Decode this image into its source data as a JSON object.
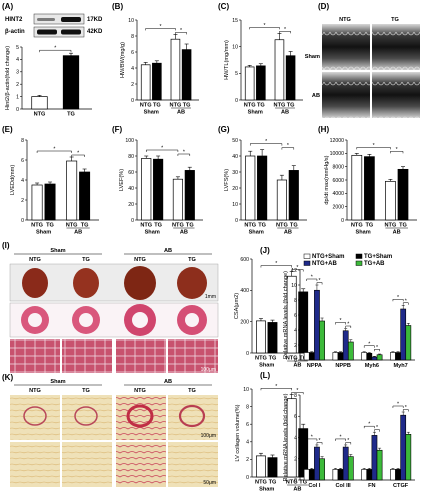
{
  "panel_labels": [
    "(A)",
    "(B)",
    "(C)",
    "(D)",
    "(E)",
    "(F)",
    "(G)",
    "(H)",
    "(I)",
    "(J)",
    "(K)",
    "(L)"
  ],
  "colors": {
    "white": "#ffffff",
    "black": "#000000",
    "navy": "#1f2a8a",
    "green": "#3cba3a",
    "gray": "#9a9a9a"
  },
  "blot": {
    "rows": [
      {
        "label": "HINT2",
        "kd": "17KD"
      },
      {
        "label": "β-actin",
        "kd": "42KD"
      }
    ],
    "lanes": [
      "NTG",
      "TG"
    ]
  },
  "group_labels": {
    "sham": "Sham",
    "ab": "AB",
    "ntg": "NTG",
    "tg": "TG"
  },
  "echo": {
    "cols": [
      "NTG",
      "TG"
    ],
    "rows": [
      "Sham",
      "AB"
    ]
  },
  "histo_I": {
    "headers": [
      "Sham",
      "AB"
    ],
    "subheaders": [
      "NTG",
      "TG",
      "NTG",
      "TG"
    ]
  },
  "histo_K": {
    "headers": [
      "Sham",
      "AB"
    ],
    "subheaders": [
      "NTG",
      "TG",
      "NTG",
      "TG"
    ]
  },
  "scale_labels": {
    "i_row1": "1mm",
    "i_row3": "100μm",
    "k_row1": "100μm",
    "k_row2": "50μm"
  },
  "chart_data": [
    {
      "id": "A",
      "type": "bar",
      "ylabel": "Hint2/β-actin(fold change)",
      "ylim": [
        0,
        5
      ],
      "yticks": [
        0,
        1,
        2,
        3,
        4,
        5
      ],
      "categories": [
        "NTG",
        "TG"
      ],
      "values": [
        1.0,
        4.3
      ],
      "errors": [
        0.1,
        0.2
      ],
      "fills": [
        "white",
        "black"
      ]
    },
    {
      "id": "B",
      "type": "bar",
      "ylabel": "HW/BW(mg/g)",
      "ylim": [
        0,
        10
      ],
      "yticks": [
        0,
        2,
        4,
        6,
        8,
        10
      ],
      "categories": [
        "NTG",
        "TG",
        "NTG",
        "TG"
      ],
      "values": [
        4.4,
        4.6,
        7.6,
        6.3
      ],
      "errors": [
        0.3,
        0.3,
        0.6,
        0.7
      ],
      "fills": [
        "white",
        "black",
        "white",
        "black"
      ]
    },
    {
      "id": "C",
      "type": "bar",
      "ylabel": "HW/TL(mg/mm)",
      "ylim": [
        0,
        15
      ],
      "yticks": [
        0,
        5,
        10,
        15
      ],
      "categories": [
        "NTG",
        "TG",
        "NTG",
        "TG"
      ],
      "values": [
        6.2,
        6.4,
        11.3,
        8.3
      ],
      "errors": [
        0.3,
        0.4,
        1.2,
        0.8
      ],
      "fills": [
        "white",
        "black",
        "white",
        "black"
      ]
    },
    {
      "id": "E",
      "type": "bar",
      "ylabel": "LVEDd(mm)",
      "ylim": [
        0,
        8
      ],
      "yticks": [
        0,
        2,
        4,
        6,
        8
      ],
      "categories": [
        "NTG",
        "TG",
        "NTG",
        "TG"
      ],
      "values": [
        3.5,
        3.6,
        5.9,
        4.8
      ],
      "errors": [
        0.2,
        0.2,
        0.4,
        0.3
      ],
      "fills": [
        "white",
        "black",
        "white",
        "black"
      ]
    },
    {
      "id": "F",
      "type": "bar",
      "ylabel": "LVEF(%)",
      "ylim": [
        0,
        100
      ],
      "yticks": [
        0,
        20,
        40,
        60,
        80,
        100
      ],
      "categories": [
        "NTG",
        "TG",
        "NTG",
        "TG"
      ],
      "values": [
        77,
        76,
        51,
        62
      ],
      "errors": [
        3,
        4,
        3,
        4
      ],
      "fills": [
        "white",
        "black",
        "white",
        "black"
      ]
    },
    {
      "id": "G",
      "type": "bar",
      "ylabel": "LVFS(%)",
      "ylim": [
        0,
        50
      ],
      "yticks": [
        0,
        10,
        20,
        30,
        40,
        50
      ],
      "categories": [
        "NTG",
        "TG",
        "NTG",
        "TG"
      ],
      "values": [
        40,
        40,
        25,
        31
      ],
      "errors": [
        3,
        4,
        3,
        3
      ],
      "fills": [
        "white",
        "black",
        "white",
        "black"
      ]
    },
    {
      "id": "H",
      "type": "bar",
      "ylabel": "dp/dt max(mmHg/s)",
      "ylim": [
        0,
        12000
      ],
      "yticks": [
        0,
        2000,
        4000,
        6000,
        8000,
        10000,
        12000
      ],
      "categories": [
        "NTG",
        "TG",
        "NTG",
        "TG"
      ],
      "values": [
        9700,
        9500,
        5800,
        7600
      ],
      "errors": [
        300,
        350,
        300,
        400
      ],
      "fills": [
        "white",
        "black",
        "white",
        "black"
      ]
    },
    {
      "id": "I",
      "type": "bar",
      "ylabel": "CSA(μm2)",
      "ylim": [
        0,
        600
      ],
      "yticks": [
        0,
        200,
        400,
        600
      ],
      "categories": [
        "NTG",
        "TG",
        "NTG",
        "TG"
      ],
      "values": [
        205,
        195,
        490,
        390
      ],
      "errors": [
        15,
        15,
        30,
        20
      ],
      "fills": [
        "white",
        "black",
        "white",
        "black"
      ]
    },
    {
      "id": "K",
      "type": "bar",
      "ylabel": "LV collagen volume(%)",
      "ylim": [
        0,
        10
      ],
      "yticks": [
        0,
        2,
        4,
        6,
        8,
        10
      ],
      "categories": [
        "NTG",
        "TG",
        "NTG",
        "TG"
      ],
      "values": [
        2.4,
        2.2,
        8.9,
        5.5
      ],
      "errors": [
        0.3,
        0.3,
        0.5,
        0.5
      ],
      "fills": [
        "white",
        "black",
        "white",
        "black"
      ]
    },
    {
      "id": "J",
      "type": "bar",
      "ylabel": "Relative mRNA levels (fold change)",
      "ylim": [
        0,
        12
      ],
      "yticks": [
        0,
        2,
        4,
        6,
        8,
        10,
        12
      ],
      "categories": [
        "NPPA",
        "NPPB",
        "Myh6",
        "Myh7"
      ],
      "series": [
        {
          "name": "NTG+Sham",
          "values": [
            1.0,
            1.0,
            1.0,
            1.0
          ],
          "errors": [
            0.1,
            0.1,
            0.1,
            0.1
          ],
          "fill": "white"
        },
        {
          "name": "TG+Sham",
          "values": [
            1.0,
            1.0,
            0.9,
            1.0
          ],
          "errors": [
            0.1,
            0.1,
            0.1,
            0.1
          ],
          "fill": "black"
        },
        {
          "name": "NTG+AB",
          "values": [
            9.3,
            3.9,
            0.4,
            6.8
          ],
          "errors": [
            0.7,
            0.3,
            0.1,
            0.5
          ],
          "fill": "navy"
        },
        {
          "name": "TG+AB",
          "values": [
            5.2,
            2.4,
            0.7,
            4.6
          ],
          "errors": [
            0.4,
            0.3,
            0.1,
            0.3
          ],
          "fill": "green"
        }
      ]
    },
    {
      "id": "L",
      "type": "bar",
      "ylabel": "Relative mRNA levels (fold change)",
      "ylim": [
        0,
        8
      ],
      "yticks": [
        0,
        2,
        4,
        6,
        8
      ],
      "categories": [
        "Col I",
        "Col III",
        "FN",
        "CTGF"
      ],
      "series": [
        {
          "name": "NTG+Sham",
          "values": [
            1.0,
            1.0,
            1.0,
            1.0
          ],
          "errors": [
            0.1,
            0.1,
            0.1,
            0.1
          ],
          "fill": "white"
        },
        {
          "name": "TG+Sham",
          "values": [
            1.0,
            1.0,
            1.0,
            1.0
          ],
          "errors": [
            0.1,
            0.1,
            0.1,
            0.1
          ],
          "fill": "black"
        },
        {
          "name": "NTG+AB",
          "values": [
            3.1,
            3.1,
            4.2,
            6.1
          ],
          "errors": [
            0.2,
            0.2,
            0.3,
            0.3
          ],
          "fill": "navy"
        },
        {
          "name": "TG+AB",
          "values": [
            2.0,
            2.2,
            2.8,
            4.3
          ],
          "errors": [
            0.2,
            0.2,
            0.2,
            0.2
          ],
          "fill": "green"
        }
      ]
    }
  ]
}
